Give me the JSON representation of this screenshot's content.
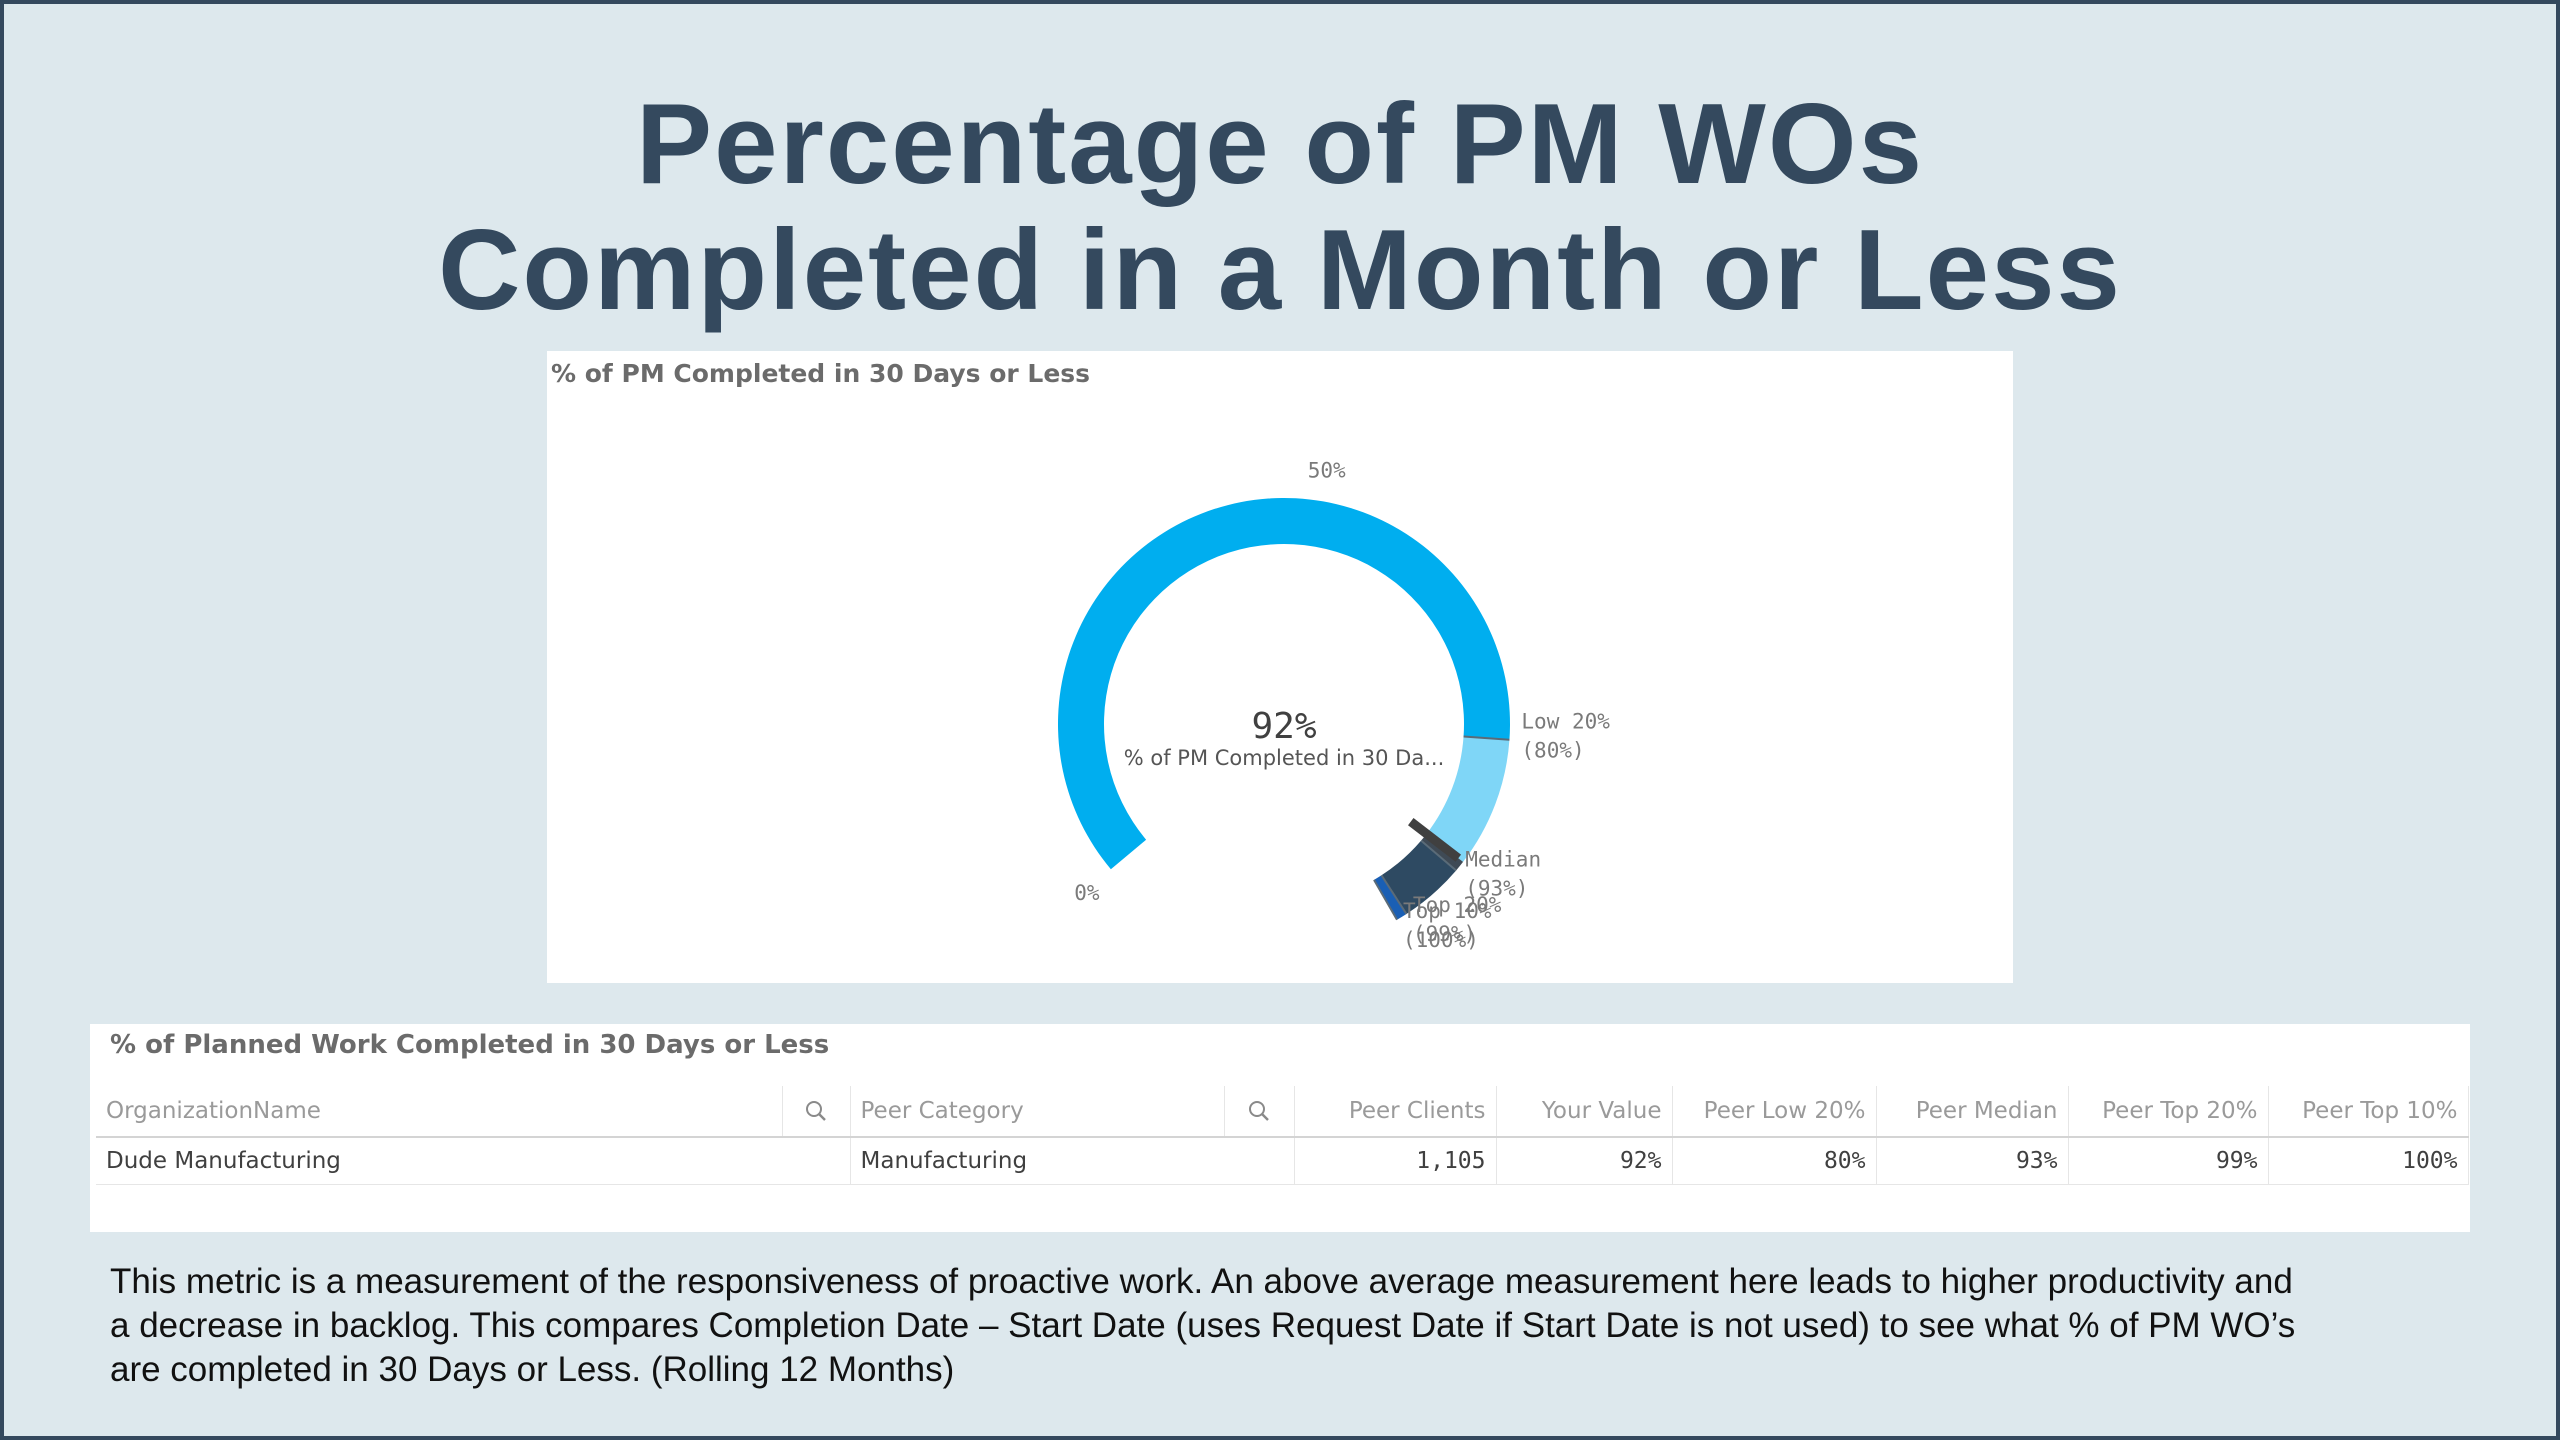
{
  "title": {
    "line1": "Percentage of PM WOs",
    "line2": "Completed in a Month or Less"
  },
  "gauge_panel": {
    "title": "% of PM Completed in 30 Days or Less"
  },
  "chart_data": {
    "type": "gauge",
    "title": "% of PM Completed in 30 Days or Less",
    "value": 92,
    "value_label": "92%",
    "measure_label": "% of PM Completed in 30 Da...",
    "range": [
      0,
      100
    ],
    "scale_labels": [
      {
        "value": 0,
        "label": "0%"
      },
      {
        "value": 50,
        "label": "50%"
      }
    ],
    "segments": [
      {
        "from": 0,
        "to": 80,
        "color": "#00aeef"
      },
      {
        "from": 80,
        "to": 92,
        "color": "#7fd6f7"
      },
      {
        "from": 92,
        "to": 93,
        "color": "#3f4a55"
      },
      {
        "from": 93,
        "to": 99,
        "color": "#2e4a62"
      },
      {
        "from": 99,
        "to": 100,
        "color": "#1a5fb4"
      }
    ],
    "reference_lines": [
      {
        "value": 80,
        "label": "Low 20%",
        "value_text": "(80%)"
      },
      {
        "value": 93,
        "label": "Median",
        "value_text": "(93%)"
      },
      {
        "value": 99,
        "label": "Top 20%",
        "value_text": "(99%)"
      },
      {
        "value": 100,
        "label": "Top 10%",
        "value_text": "(100%)"
      }
    ]
  },
  "table": {
    "title": "% of Planned Work Completed in 30 Days or Less",
    "columns": [
      "OrganizationName",
      "Peer Category",
      "Peer Clients",
      "Your Value",
      "Peer Low 20%",
      "Peer Median",
      "Peer Top 20%",
      "Peer Top 10%"
    ],
    "rows": [
      [
        "Dude Manufacturing",
        "Manufacturing",
        "1,105",
        "92%",
        "80%",
        "93%",
        "99%",
        "100%"
      ]
    ]
  },
  "description": {
    "line1": "This metric is a measurement of the responsiveness of proactive work.  An above average measurement here leads to higher productivity and",
    "line2": "a decrease in backlog. This compares Completion Date – Start Date (uses Request Date if Start Date is not used) to see what % of PM WO’s",
    "line3": "are completed in 30 Days or Less. (Rolling 12 Months)"
  }
}
